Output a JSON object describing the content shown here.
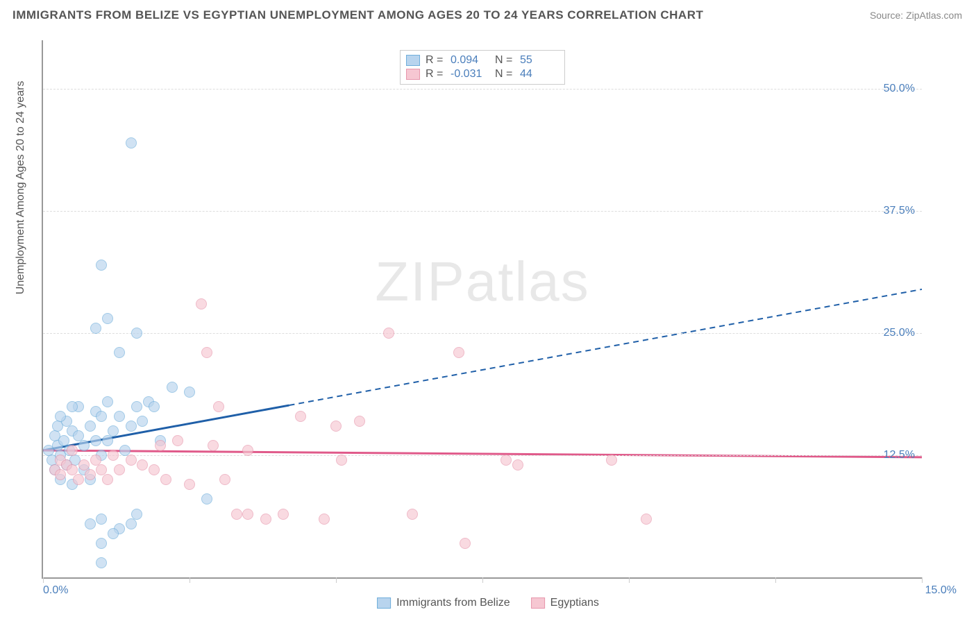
{
  "title": "IMMIGRANTS FROM BELIZE VS EGYPTIAN UNEMPLOYMENT AMONG AGES 20 TO 24 YEARS CORRELATION CHART",
  "source": "Source: ZipAtlas.com",
  "watermark": "ZIPatlas",
  "y_axis_title": "Unemployment Among Ages 20 to 24 years",
  "chart": {
    "type": "scatter",
    "xlim": [
      0,
      15
    ],
    "ylim": [
      0,
      55
    ],
    "x_ticks": [
      0,
      2.5,
      5,
      7.5,
      10,
      12.5,
      15
    ],
    "x_tick_labels": {
      "0": "0.0%",
      "15": "15.0%"
    },
    "y_ticks": [
      12.5,
      25,
      37.5,
      50
    ],
    "y_tick_labels": {
      "12.5": "12.5%",
      "25": "25.0%",
      "37.5": "37.5%",
      "50": "50.0%"
    },
    "grid_color": "#dddddd",
    "background_color": "#ffffff",
    "marker_radius": 8,
    "series": [
      {
        "name": "Immigrants from Belize",
        "fill": "#b8d4ee",
        "stroke": "#6faedb",
        "fill_opacity": 0.65,
        "R": "0.094",
        "N": "55",
        "trend": {
          "color": "#1f5fa8",
          "width": 3,
          "solid_to_x": 4.2,
          "y_start": 13.0,
          "y_end_at_15": 29.5
        },
        "points": [
          [
            0.1,
            13.0
          ],
          [
            0.15,
            12.0
          ],
          [
            0.2,
            14.5
          ],
          [
            0.2,
            11.0
          ],
          [
            0.25,
            13.5
          ],
          [
            0.25,
            15.5
          ],
          [
            0.3,
            12.5
          ],
          [
            0.3,
            10.0
          ],
          [
            0.35,
            14.0
          ],
          [
            0.4,
            11.5
          ],
          [
            0.4,
            16.0
          ],
          [
            0.45,
            13.0
          ],
          [
            0.5,
            9.5
          ],
          [
            0.5,
            15.0
          ],
          [
            0.55,
            12.0
          ],
          [
            0.6,
            14.5
          ],
          [
            0.6,
            17.5
          ],
          [
            0.7,
            11.0
          ],
          [
            0.7,
            13.5
          ],
          [
            0.8,
            15.5
          ],
          [
            0.8,
            10.0
          ],
          [
            0.9,
            14.0
          ],
          [
            0.9,
            17.0
          ],
          [
            1.0,
            12.5
          ],
          [
            1.0,
            16.5
          ],
          [
            1.1,
            14.0
          ],
          [
            1.1,
            26.5
          ],
          [
            1.1,
            18.0
          ],
          [
            1.2,
            15.0
          ],
          [
            1.3,
            16.5
          ],
          [
            1.3,
            23.0
          ],
          [
            1.4,
            13.0
          ],
          [
            1.5,
            15.5
          ],
          [
            1.0,
            32.0
          ],
          [
            1.5,
            44.5
          ],
          [
            1.6,
            17.5
          ],
          [
            1.6,
            25.0
          ],
          [
            1.8,
            18.0
          ],
          [
            1.7,
            16.0
          ],
          [
            1.9,
            17.5
          ],
          [
            2.0,
            14.0
          ],
          [
            2.2,
            19.5
          ],
          [
            0.8,
            5.5
          ],
          [
            1.0,
            6.0
          ],
          [
            1.3,
            5.0
          ],
          [
            1.0,
            1.5
          ],
          [
            1.5,
            5.5
          ],
          [
            2.5,
            19.0
          ],
          [
            2.8,
            8.0
          ],
          [
            0.9,
            25.5
          ],
          [
            0.5,
            17.5
          ],
          [
            0.3,
            16.5
          ],
          [
            1.0,
            3.5
          ],
          [
            1.6,
            6.5
          ],
          [
            1.2,
            4.5
          ]
        ]
      },
      {
        "name": "Egyptians",
        "fill": "#f6c7d2",
        "stroke": "#e796ac",
        "fill_opacity": 0.65,
        "R": "-0.031",
        "N": "44",
        "trend": {
          "color": "#e05a8a",
          "width": 3,
          "solid_to_x": 15,
          "y_start": 13.0,
          "y_end_at_15": 12.3
        },
        "points": [
          [
            0.2,
            11.0
          ],
          [
            0.3,
            12.0
          ],
          [
            0.3,
            10.5
          ],
          [
            0.4,
            11.5
          ],
          [
            0.5,
            11.0
          ],
          [
            0.5,
            13.0
          ],
          [
            0.6,
            10.0
          ],
          [
            0.7,
            11.5
          ],
          [
            0.8,
            10.5
          ],
          [
            0.9,
            12.0
          ],
          [
            1.0,
            11.0
          ],
          [
            1.1,
            10.0
          ],
          [
            1.2,
            12.5
          ],
          [
            1.3,
            11.0
          ],
          [
            1.5,
            12.0
          ],
          [
            1.7,
            11.5
          ],
          [
            1.9,
            11.0
          ],
          [
            2.0,
            13.5
          ],
          [
            2.1,
            10.0
          ],
          [
            2.7,
            28.0
          ],
          [
            2.8,
            23.0
          ],
          [
            2.9,
            13.5
          ],
          [
            3.0,
            17.5
          ],
          [
            3.1,
            10.0
          ],
          [
            3.3,
            6.5
          ],
          [
            3.5,
            13.0
          ],
          [
            3.5,
            6.5
          ],
          [
            3.8,
            6.0
          ],
          [
            4.1,
            6.5
          ],
          [
            4.4,
            16.5
          ],
          [
            4.8,
            6.0
          ],
          [
            5.0,
            15.5
          ],
          [
            5.1,
            12.0
          ],
          [
            5.4,
            16.0
          ],
          [
            5.9,
            25.0
          ],
          [
            6.3,
            6.5
          ],
          [
            7.1,
            23.0
          ],
          [
            7.2,
            3.5
          ],
          [
            7.9,
            12.0
          ],
          [
            8.1,
            11.5
          ],
          [
            9.7,
            12.0
          ],
          [
            10.3,
            6.0
          ],
          [
            2.3,
            14.0
          ],
          [
            2.5,
            9.5
          ]
        ]
      }
    ]
  },
  "legend_labels": {
    "R": "R =",
    "N": "N ="
  }
}
